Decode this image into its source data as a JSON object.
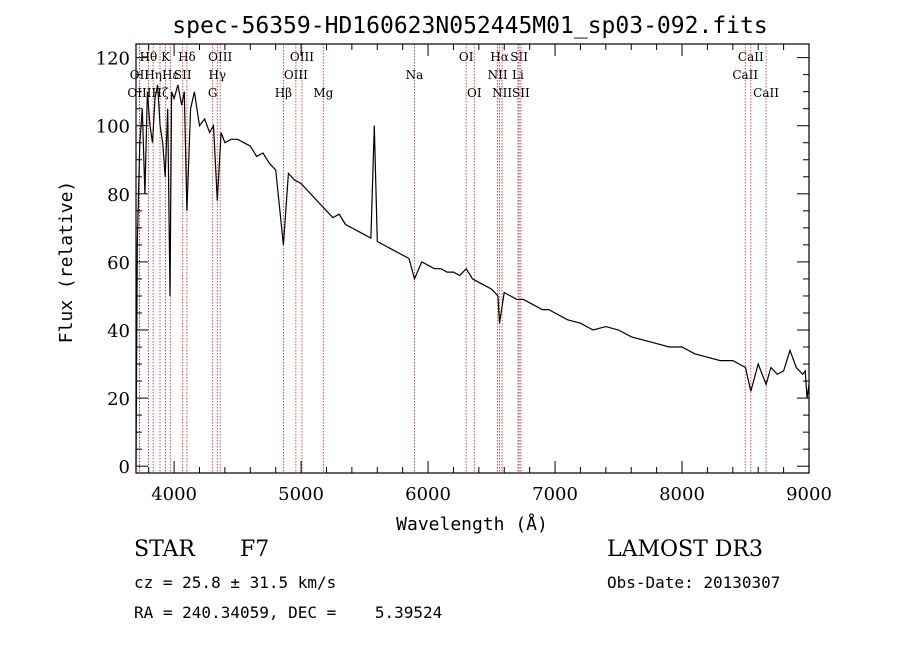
{
  "chart_data": {
    "type": "line",
    "title": "spec-56359-HD160623N052445M01_sp03-092.fits",
    "xlabel": "Wavelength (Å)",
    "ylabel": "Flux (relative)",
    "xlim": [
      3700,
      9000
    ],
    "ylim": [
      -2,
      124
    ],
    "xticks": [
      4000,
      5000,
      6000,
      7000,
      8000,
      9000
    ],
    "yticks": [
      0,
      20,
      40,
      60,
      80,
      100,
      120
    ],
    "grid": false,
    "series": [
      {
        "name": "spectrum",
        "x": [
          3700,
          3710,
          3730,
          3750,
          3770,
          3790,
          3810,
          3830,
          3850,
          3870,
          3890,
          3910,
          3930,
          3950,
          3968,
          3980,
          4000,
          4030,
          4060,
          4080,
          4101,
          4130,
          4160,
          4200,
          4240,
          4280,
          4310,
          4340,
          4370,
          4400,
          4450,
          4500,
          4550,
          4600,
          4650,
          4700,
          4750,
          4800,
          4861,
          4900,
          4950,
          5000,
          5050,
          5100,
          5150,
          5200,
          5250,
          5300,
          5350,
          5400,
          5450,
          5500,
          5550,
          5577,
          5600,
          5650,
          5700,
          5750,
          5800,
          5850,
          5893,
          5950,
          6000,
          6050,
          6100,
          6150,
          6200,
          6250,
          6300,
          6350,
          6400,
          6450,
          6500,
          6550,
          6563,
          6600,
          6650,
          6700,
          6750,
          6800,
          6850,
          6900,
          6950,
          7000,
          7100,
          7200,
          7300,
          7400,
          7500,
          7600,
          7700,
          7800,
          7900,
          8000,
          8100,
          8200,
          8300,
          8400,
          8500,
          8542,
          8600,
          8662,
          8700,
          8750,
          8800,
          8850,
          8900,
          8950,
          8970,
          8985,
          9000
        ],
        "y": [
          0,
          65,
          95,
          105,
          80,
          110,
          100,
          95,
          108,
          112,
          100,
          95,
          85,
          105,
          50,
          110,
          108,
          112,
          106,
          110,
          75,
          105,
          110,
          100,
          102,
          98,
          100,
          78,
          98,
          95,
          96,
          96,
          95,
          94,
          91,
          92,
          89,
          87,
          65,
          86,
          84,
          83,
          81,
          79,
          77,
          75,
          73,
          74,
          71,
          70,
          69,
          68,
          67,
          100,
          66,
          65,
          64,
          63,
          62,
          61,
          55,
          60,
          59,
          58,
          58,
          57,
          57,
          56,
          58,
          55,
          54,
          53,
          52,
          50,
          42,
          51,
          50,
          49,
          49,
          48,
          47,
          46,
          46,
          45,
          43,
          42,
          40,
          41,
          40,
          38,
          37,
          36,
          35,
          35,
          33,
          32,
          31,
          31,
          29,
          22,
          30,
          24,
          29,
          27,
          28,
          34,
          29,
          27,
          28,
          20,
          24
        ]
      }
    ],
    "line_markers": [
      {
        "label": "Hθ",
        "x": 3798,
        "row": 1
      },
      {
        "label": "OII",
        "x": 3727,
        "row": 2
      },
      {
        "label": "OIII",
        "x": 3727,
        "row": 3
      },
      {
        "label": "Hη",
        "x": 3835,
        "row": 2
      },
      {
        "label": "Hζ",
        "x": 3889,
        "row": 3
      },
      {
        "label": "K",
        "x": 3933,
        "row": 1
      },
      {
        "label": "Hε",
        "x": 3970,
        "row": 2
      },
      {
        "label": "SII",
        "x": 4068,
        "row": 2
      },
      {
        "label": "Hδ",
        "x": 4101,
        "row": 1
      },
      {
        "label": "OIII",
        "x": 4363,
        "row": 1
      },
      {
        "label": "Hγ",
        "x": 4340,
        "row": 2
      },
      {
        "label": "G",
        "x": 4304,
        "row": 3
      },
      {
        "label": "Hβ",
        "x": 4861,
        "row": 3
      },
      {
        "label": "OIII",
        "x": 4959,
        "row": 2
      },
      {
        "label": "OIII",
        "x": 5007,
        "row": 1
      },
      {
        "label": "Mg",
        "x": 5175,
        "row": 3
      },
      {
        "label": "Na",
        "x": 5893,
        "row": 2
      },
      {
        "label": "OI",
        "x": 6300,
        "row": 1
      },
      {
        "label": "OI",
        "x": 6364,
        "row": 3
      },
      {
        "label": "Hα",
        "x": 6563,
        "row": 1
      },
      {
        "label": "NII",
        "x": 6548,
        "row": 2
      },
      {
        "label": "NII",
        "x": 6583,
        "row": 3
      },
      {
        "label": "SII",
        "x": 6717,
        "row": 1
      },
      {
        "label": "Li",
        "x": 6708,
        "row": 2
      },
      {
        "label": "SII",
        "x": 6731,
        "row": 3
      },
      {
        "label": "CaII",
        "x": 8542,
        "row": 1
      },
      {
        "label": "CaII",
        "x": 8498,
        "row": 2
      },
      {
        "label": "CaII",
        "x": 8662,
        "row": 3
      }
    ],
    "marker_color": "#cc2222",
    "line_color": "#000000"
  },
  "info": {
    "class_label": "STAR",
    "subclass": "F7",
    "survey": "LAMOST DR3",
    "cz": "cz = 25.8 ± 31.5 km/s",
    "obs_date": "Obs-Date: 20130307",
    "coords": "RA = 240.34059, DEC =    5.39524"
  }
}
